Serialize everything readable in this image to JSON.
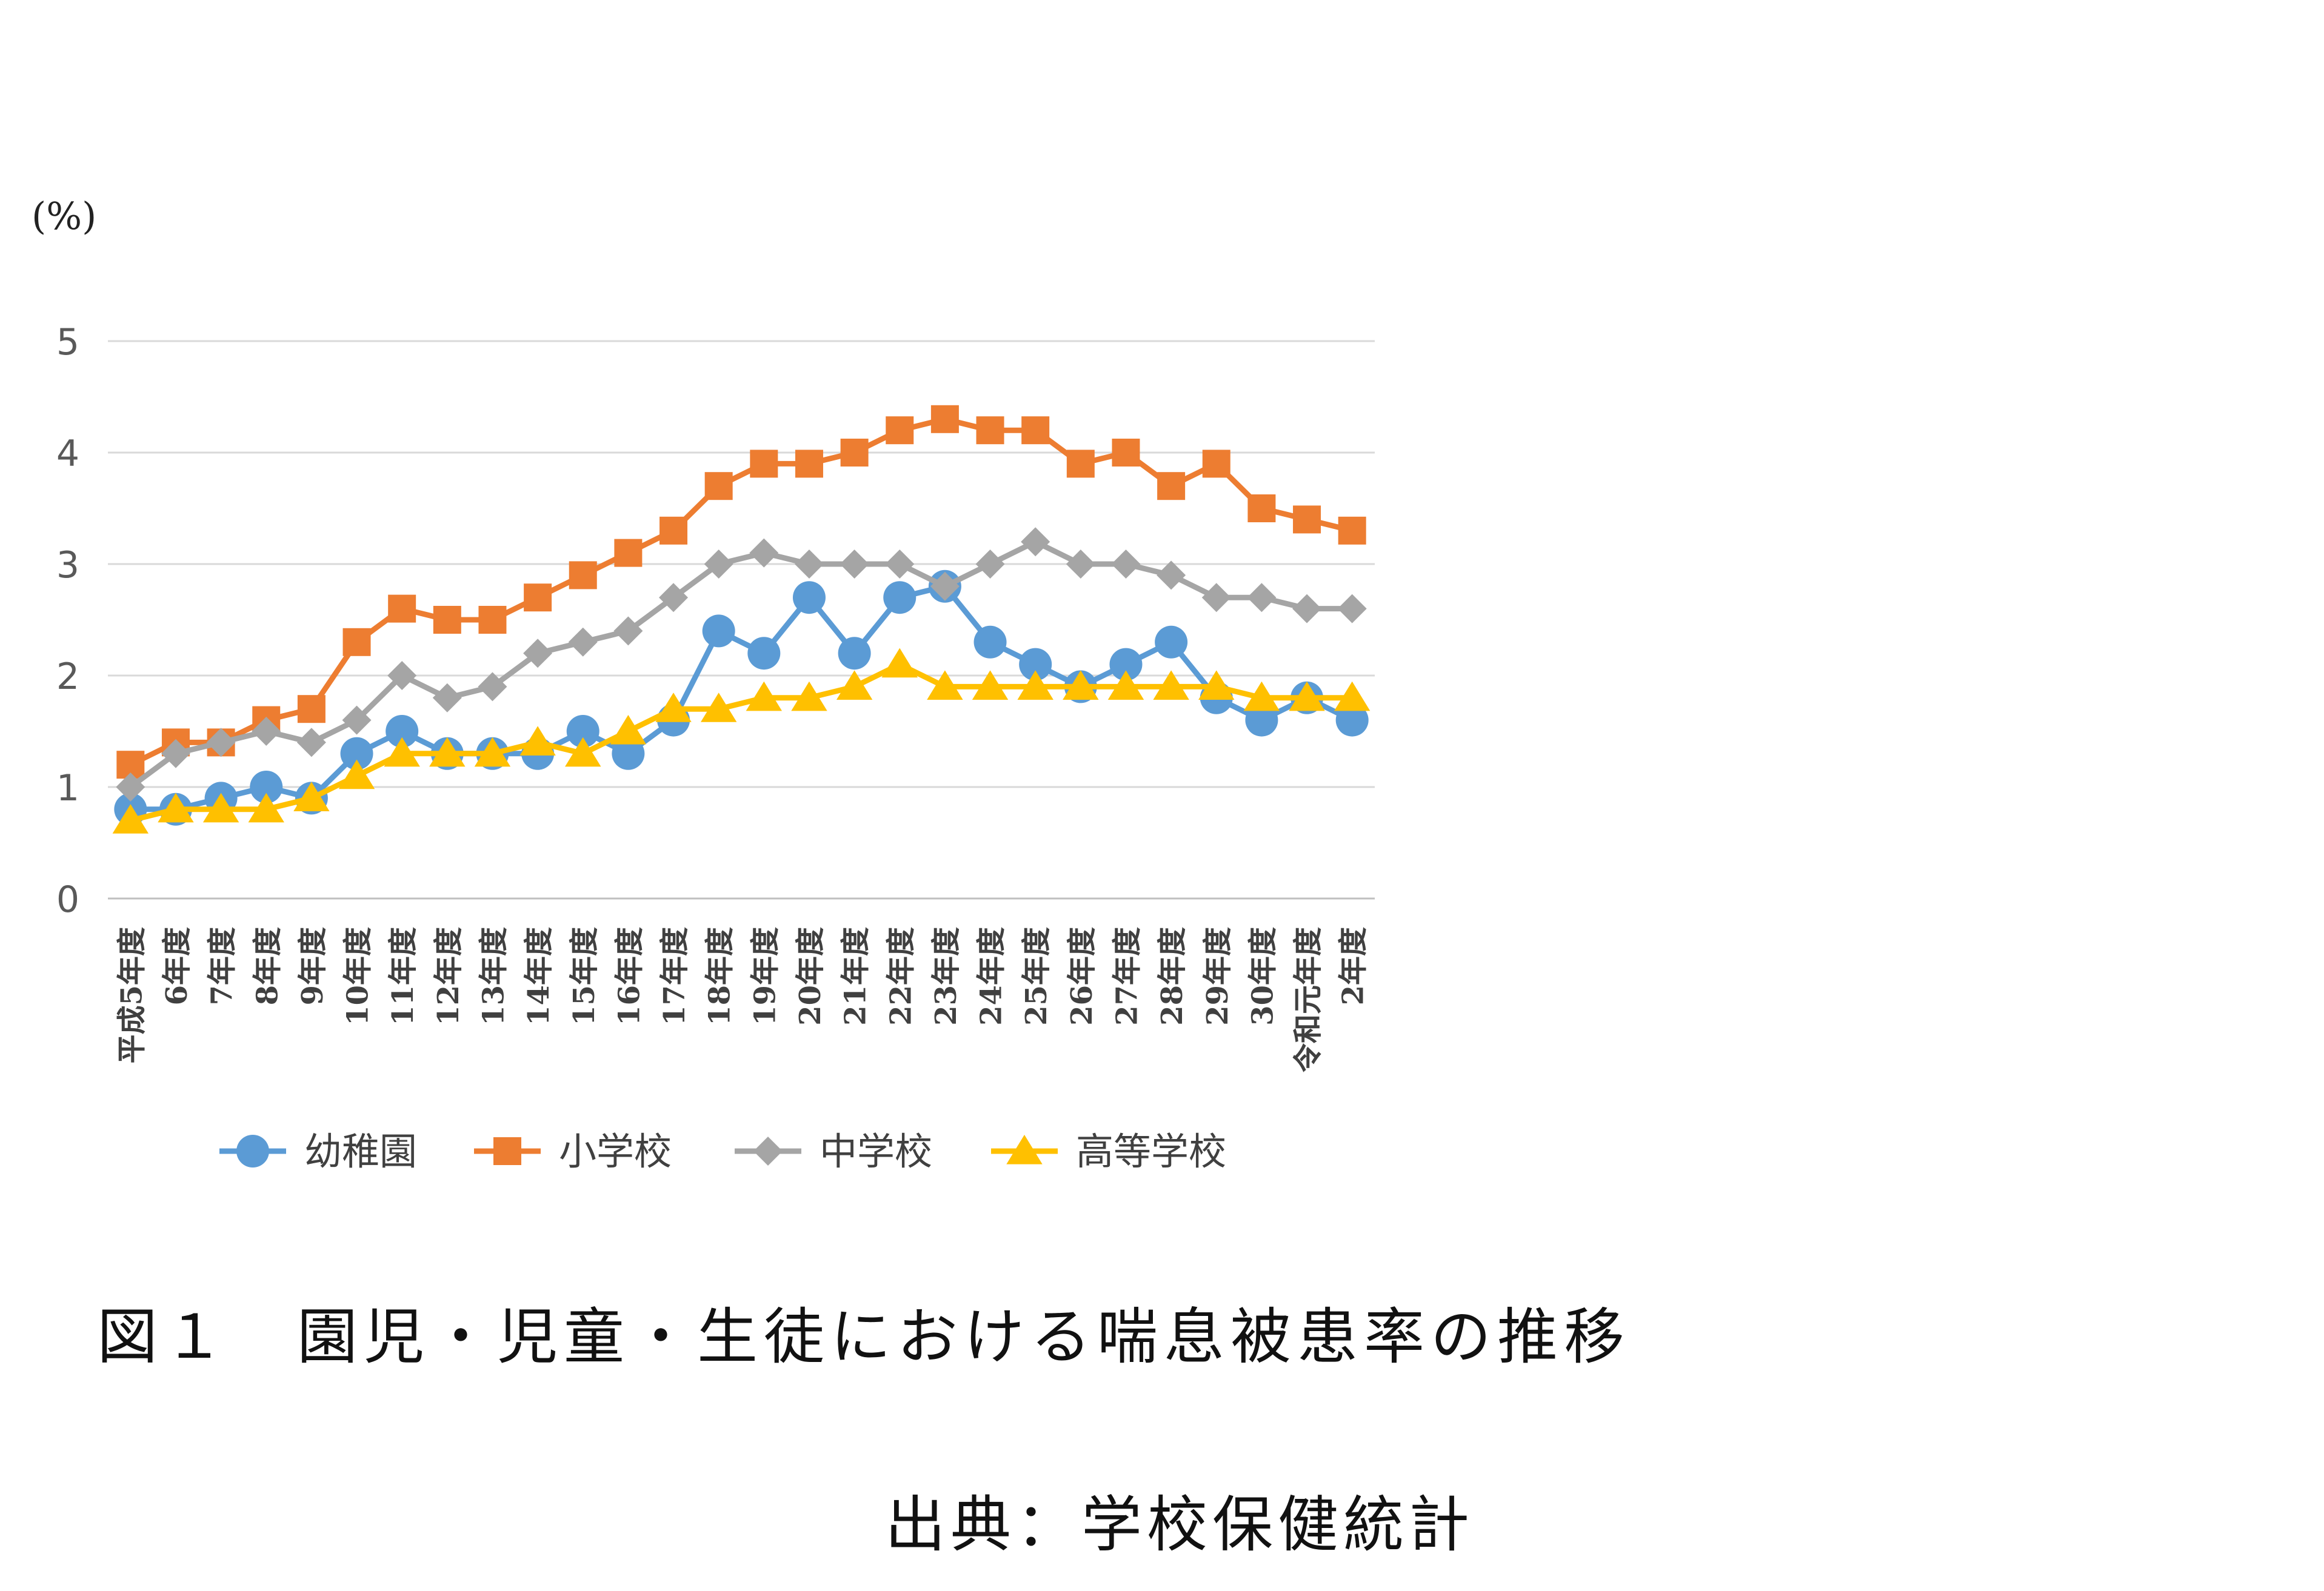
{
  "y_unit": "(%)",
  "caption": "図１　園児・児童・生徒における喘息被患率の推移",
  "source": "出典：学校保健統計",
  "chart_data": {
    "type": "line",
    "ylabel": "(%)",
    "ylim": [
      0,
      5
    ],
    "yticks": [
      "0",
      "1",
      "2",
      "3",
      "4",
      "5"
    ],
    "grid": true,
    "legend_position": "bottom",
    "categories": [
      "平成5年度",
      "6年度",
      "7年度",
      "8年度",
      "9年度",
      "10年度",
      "11年度",
      "12年度",
      "13年度",
      "14年度",
      "15年度",
      "16年度",
      "17年度",
      "18年度",
      "19年度",
      "20年度",
      "21年度",
      "22年度",
      "23年度",
      "24年度",
      "25年度",
      "26年度",
      "27年度",
      "28年度",
      "29年度",
      "30年度",
      "令和元年度",
      "2年度"
    ],
    "series": [
      {
        "name": "幼稚園",
        "color": "#5b9bd5",
        "marker": "circle",
        "values": [
          0.8,
          0.8,
          0.9,
          1.0,
          0.9,
          1.3,
          1.5,
          1.3,
          1.3,
          1.3,
          1.5,
          1.3,
          1.6,
          2.4,
          2.2,
          2.7,
          2.2,
          2.7,
          2.8,
          2.3,
          2.1,
          1.9,
          2.1,
          2.3,
          1.8,
          1.6,
          1.8,
          1.6
        ]
      },
      {
        "name": "小学校",
        "color": "#ed7d31",
        "marker": "square",
        "values": [
          1.2,
          1.4,
          1.4,
          1.6,
          1.7,
          2.3,
          2.6,
          2.5,
          2.5,
          2.7,
          2.9,
          3.1,
          3.3,
          3.7,
          3.9,
          3.9,
          4.0,
          4.2,
          4.3,
          4.2,
          4.2,
          3.9,
          4.0,
          3.7,
          3.9,
          3.5,
          3.4,
          3.3
        ]
      },
      {
        "name": "中学校",
        "color": "#a5a5a5",
        "marker": "diamond",
        "values": [
          1.0,
          1.3,
          1.4,
          1.5,
          1.4,
          1.6,
          2.0,
          1.8,
          1.9,
          2.2,
          2.3,
          2.4,
          2.7,
          3.0,
          3.1,
          3.0,
          3.0,
          3.0,
          2.8,
          3.0,
          3.2,
          3.0,
          3.0,
          2.9,
          2.7,
          2.7,
          2.6,
          2.6
        ]
      },
      {
        "name": "高等学校",
        "color": "#ffc000",
        "marker": "triangle",
        "values": [
          0.7,
          0.8,
          0.8,
          0.8,
          0.9,
          1.1,
          1.3,
          1.3,
          1.3,
          1.4,
          1.3,
          1.5,
          1.7,
          1.7,
          1.8,
          1.8,
          1.9,
          2.1,
          1.9,
          1.9,
          1.9,
          1.9,
          1.9,
          1.9,
          1.9,
          1.8,
          1.8,
          1.8
        ]
      }
    ]
  }
}
